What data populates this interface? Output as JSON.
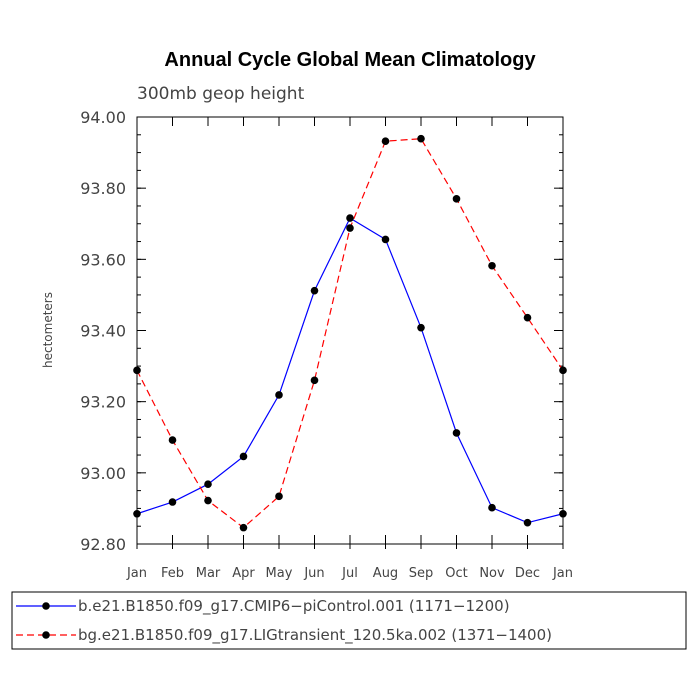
{
  "chart_data": {
    "type": "line",
    "title": "Annual Cycle Global Mean Climatology",
    "subtitle": "300mb geop height",
    "xlabel": "",
    "ylabel": "hectometers",
    "ylim": [
      92.8,
      94.0
    ],
    "yticks": [
      "92.80",
      "93.00",
      "93.20",
      "93.40",
      "93.60",
      "93.80",
      "94.00"
    ],
    "ytick_values": [
      92.8,
      93.0,
      93.2,
      93.4,
      93.6,
      93.8,
      94.0
    ],
    "categories": [
      "Jan",
      "Feb",
      "Mar",
      "Apr",
      "May",
      "Jun",
      "Jul",
      "Aug",
      "Sep",
      "Oct",
      "Nov",
      "Dec",
      "Jan"
    ],
    "series": [
      {
        "name": "b.e21.B1850.f09_g17.CMIP6−piControl.001 (1171−1200)",
        "color": "#0000ff",
        "dash": "solid",
        "values": [
          92.885,
          92.918,
          92.968,
          93.046,
          93.219,
          93.512,
          93.716,
          93.656,
          93.408,
          93.112,
          92.902,
          92.86,
          92.885
        ]
      },
      {
        "name": "bg.e21.B1850.f09_g17.LIGtransient_120.5ka.002 (1371−1400)",
        "color": "#ff0000",
        "dash": "dashed",
        "values": [
          93.288,
          93.092,
          92.922,
          92.846,
          92.934,
          93.26,
          93.688,
          93.932,
          93.939,
          93.77,
          93.582,
          93.436,
          93.288
        ]
      }
    ]
  }
}
